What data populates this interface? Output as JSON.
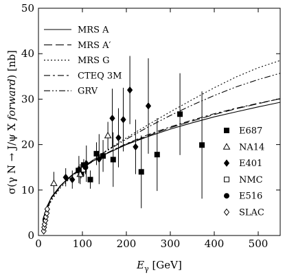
{
  "chart_data": {
    "type": "line",
    "xlabel_var": "E",
    "xlabel_sub": "γ",
    "xlabel_unit": " [GeV]",
    "ylabel_main": "σ(γ N → J/ψ X ",
    "ylabel_italic": "forward",
    "ylabel_tail": ") [nb]",
    "xlim": [
      0,
      550
    ],
    "ylim": [
      0,
      50
    ],
    "x_ticks": [
      0,
      100,
      200,
      300,
      400,
      500
    ],
    "y_ticks": [
      0,
      10,
      20,
      30,
      40,
      50
    ],
    "grid": false,
    "curve_legend_position": "top-left",
    "data_legend_position": "right",
    "curves": [
      {
        "name": "MRS A",
        "dash": "solid",
        "x": [
          10,
          20,
          30,
          50,
          75,
          100,
          150,
          200,
          250,
          300,
          350,
          400,
          450,
          500,
          550
        ],
        "y": [
          3.5,
          6.5,
          8.5,
          11.0,
          13.2,
          15.0,
          17.8,
          20.0,
          21.8,
          23.4,
          24.8,
          26.1,
          27.2,
          28.3,
          29.3
        ]
      },
      {
        "name": "MRS A′",
        "dash": "longdash",
        "x": [
          10,
          20,
          30,
          50,
          75,
          100,
          150,
          200,
          250,
          300,
          350,
          400,
          450,
          500,
          550
        ],
        "y": [
          3.4,
          6.3,
          8.3,
          10.9,
          13.1,
          14.9,
          17.8,
          20.1,
          22.0,
          23.7,
          25.2,
          26.6,
          27.9,
          29.0,
          30.1
        ]
      },
      {
        "name": "MRS G",
        "dash": "dotted",
        "x": [
          10,
          20,
          30,
          50,
          75,
          100,
          150,
          200,
          250,
          300,
          350,
          400,
          450,
          500,
          550
        ],
        "y": [
          3.0,
          5.8,
          7.8,
          10.5,
          12.9,
          14.9,
          18.4,
          21.5,
          24.4,
          27.2,
          29.9,
          32.5,
          34.9,
          36.9,
          38.5
        ]
      },
      {
        "name": "CTEQ 3M",
        "dash": "dashdot",
        "x": [
          10,
          20,
          30,
          50,
          75,
          100,
          150,
          200,
          250,
          300,
          350,
          400,
          450,
          500,
          550
        ],
        "y": [
          3.5,
          6.4,
          8.4,
          11.0,
          13.2,
          15.0,
          17.9,
          20.2,
          22.2,
          23.9,
          25.4,
          26.8,
          28.0,
          29.1,
          30.1
        ]
      },
      {
        "name": "GRV",
        "dash": "dashdotdot",
        "x": [
          10,
          20,
          30,
          50,
          75,
          100,
          150,
          200,
          250,
          300,
          350,
          400,
          450,
          500,
          550
        ],
        "y": [
          3.2,
          6.0,
          8.1,
          10.8,
          13.1,
          15.0,
          18.3,
          21.2,
          23.9,
          26.4,
          28.7,
          30.8,
          32.7,
          34.3,
          35.7
        ]
      }
    ],
    "datasets": [
      {
        "name": "E687",
        "marker": "square-filled",
        "points": [
          {
            "x": 91,
            "y": 14.3,
            "err": 1.0
          },
          {
            "x": 97,
            "y": 13.8,
            "err": 1.2
          },
          {
            "x": 103,
            "y": 15.5,
            "err": 1.3
          },
          {
            "x": 118,
            "y": 12.3,
            "err": 2.0
          },
          {
            "x": 132,
            "y": 18.0,
            "err": 2.5
          },
          {
            "x": 147,
            "y": 17.5,
            "err": 3.5
          },
          {
            "x": 170,
            "y": 16.7,
            "err": 6.0
          },
          {
            "x": 234,
            "y": 14.0,
            "err": 8.0
          },
          {
            "x": 270,
            "y": 17.8,
            "err": 8.0
          },
          {
            "x": 322,
            "y": 26.7,
            "err": 9.0
          },
          {
            "x": 372,
            "y": 19.9,
            "err": 11.8
          }
        ]
      },
      {
        "name": "NA14",
        "marker": "triangle-open",
        "points": [
          {
            "x": 35,
            "y": 11.5,
            "err": 2.5
          },
          {
            "x": 95,
            "y": 13.5,
            "err": 2.2
          },
          {
            "x": 158,
            "y": 22.0,
            "err": 3.0
          }
        ]
      },
      {
        "name": "E401",
        "marker": "diamond-filled",
        "points": [
          {
            "x": 62,
            "y": 12.8,
            "err": 2.0
          },
          {
            "x": 77,
            "y": 12.3,
            "err": 2.0
          },
          {
            "x": 92,
            "y": 14.5,
            "err": 3.0
          },
          {
            "x": 109,
            "y": 15.8,
            "err": 4.0
          },
          {
            "x": 138,
            "y": 16.8,
            "err": 5.5
          },
          {
            "x": 168,
            "y": 25.8,
            "err": 6.5
          },
          {
            "x": 182,
            "y": 21.5,
            "err": 6.5
          },
          {
            "x": 193,
            "y": 25.5,
            "err": 7.0
          },
          {
            "x": 208,
            "y": 32.0,
            "err": 7.5
          },
          {
            "x": 221,
            "y": 19.5,
            "err": 6.0
          },
          {
            "x": 250,
            "y": 28.5,
            "err": 10.5
          }
        ]
      },
      {
        "name": "NMC",
        "marker": "square-open",
        "points": [
          {
            "x": 103,
            "y": 14.5,
            "err": 1.5
          }
        ]
      },
      {
        "name": "E516",
        "marker": "circle-filled",
        "points": [
          {
            "x": 107,
            "y": 15.0,
            "err": 1.5
          }
        ]
      },
      {
        "name": "SLAC",
        "marker": "diamond-open",
        "points": [
          {
            "x": 12,
            "y": 1.0,
            "err": 0.3
          },
          {
            "x": 13,
            "y": 1.8,
            "err": 0.3
          },
          {
            "x": 14,
            "y": 2.5,
            "err": 0.3
          },
          {
            "x": 16,
            "y": 3.3,
            "err": 0.4
          },
          {
            "x": 17,
            "y": 4.1,
            "err": 0.4
          },
          {
            "x": 19,
            "y": 4.9,
            "err": 0.5
          },
          {
            "x": 20,
            "y": 5.8,
            "err": 0.5
          }
        ]
      }
    ]
  }
}
